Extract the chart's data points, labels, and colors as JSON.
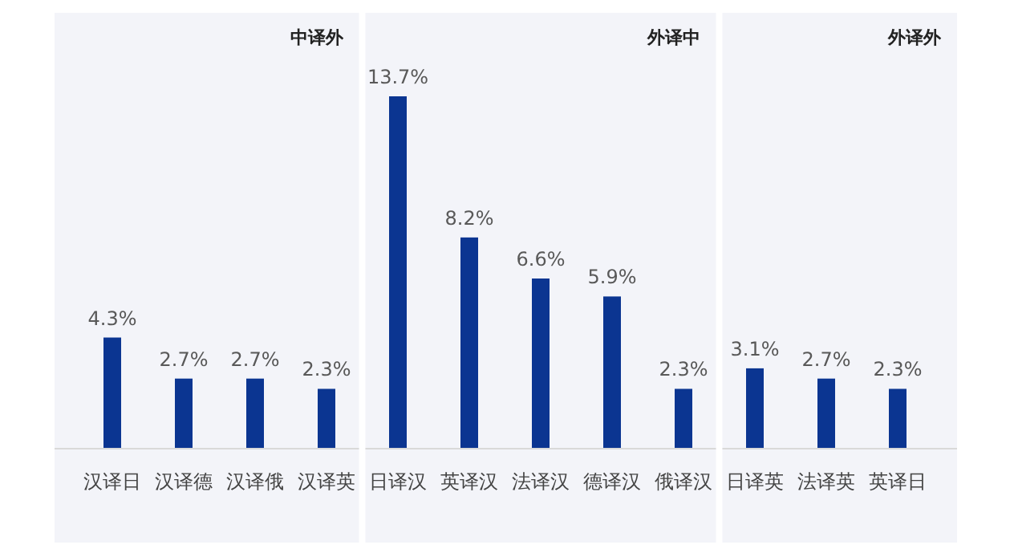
{
  "chart_data": [
    {
      "type": "bar",
      "title": "中译外",
      "categories": [
        "汉译日",
        "汉译德",
        "汉译俄",
        "汉译英"
      ],
      "values": [
        4.3,
        2.7,
        2.7,
        2.3
      ],
      "color": "#0b3591",
      "data_labels": true,
      "value_labels": [
        "4.3%",
        "2.7%",
        "2.7%",
        "2.3%"
      ]
    },
    {
      "type": "bar",
      "title": "外译中",
      "categories": [
        "日译汉",
        "英译汉",
        "法译汉",
        "德译汉",
        "俄译汉"
      ],
      "values": [
        13.7,
        8.2,
        6.6,
        5.9,
        2.3
      ],
      "color": "#0b3591",
      "data_labels": true,
      "value_labels": [
        "13.7%",
        "8.2%",
        "6.6%",
        "5.9%",
        "2.3%"
      ]
    },
    {
      "type": "bar",
      "title": "外译外",
      "categories": [
        "日译英",
        "法译英",
        "英译日"
      ],
      "values": [
        3.1,
        2.7,
        2.3
      ],
      "color": "#0b3591",
      "data_labels": true,
      "value_labels": [
        "3.1%",
        "2.7%",
        "2.3%"
      ]
    }
  ]
}
